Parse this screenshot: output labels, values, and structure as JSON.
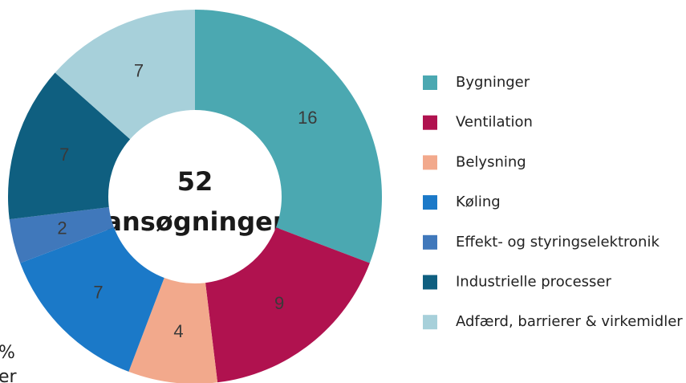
{
  "chart_data": {
    "type": "donut",
    "center_text": [
      "52",
      "ansøgninger"
    ],
    "categories": [
      "Bygninger",
      "Ventilation",
      "Belysning",
      "Køling",
      "Effekt- og styringselektronik",
      "Industrielle processer",
      "Adfærd, barrierer & virkemidler"
    ],
    "values": [
      16,
      9,
      4,
      7,
      2,
      7,
      7
    ],
    "colors": [
      "#4ba8b1",
      "#b0124f",
      "#f2a98c",
      "#1b79c8",
      "#4078bb",
      "#0f5f80",
      "#a7d0da"
    ],
    "annotations": [
      "%",
      "er"
    ]
  }
}
